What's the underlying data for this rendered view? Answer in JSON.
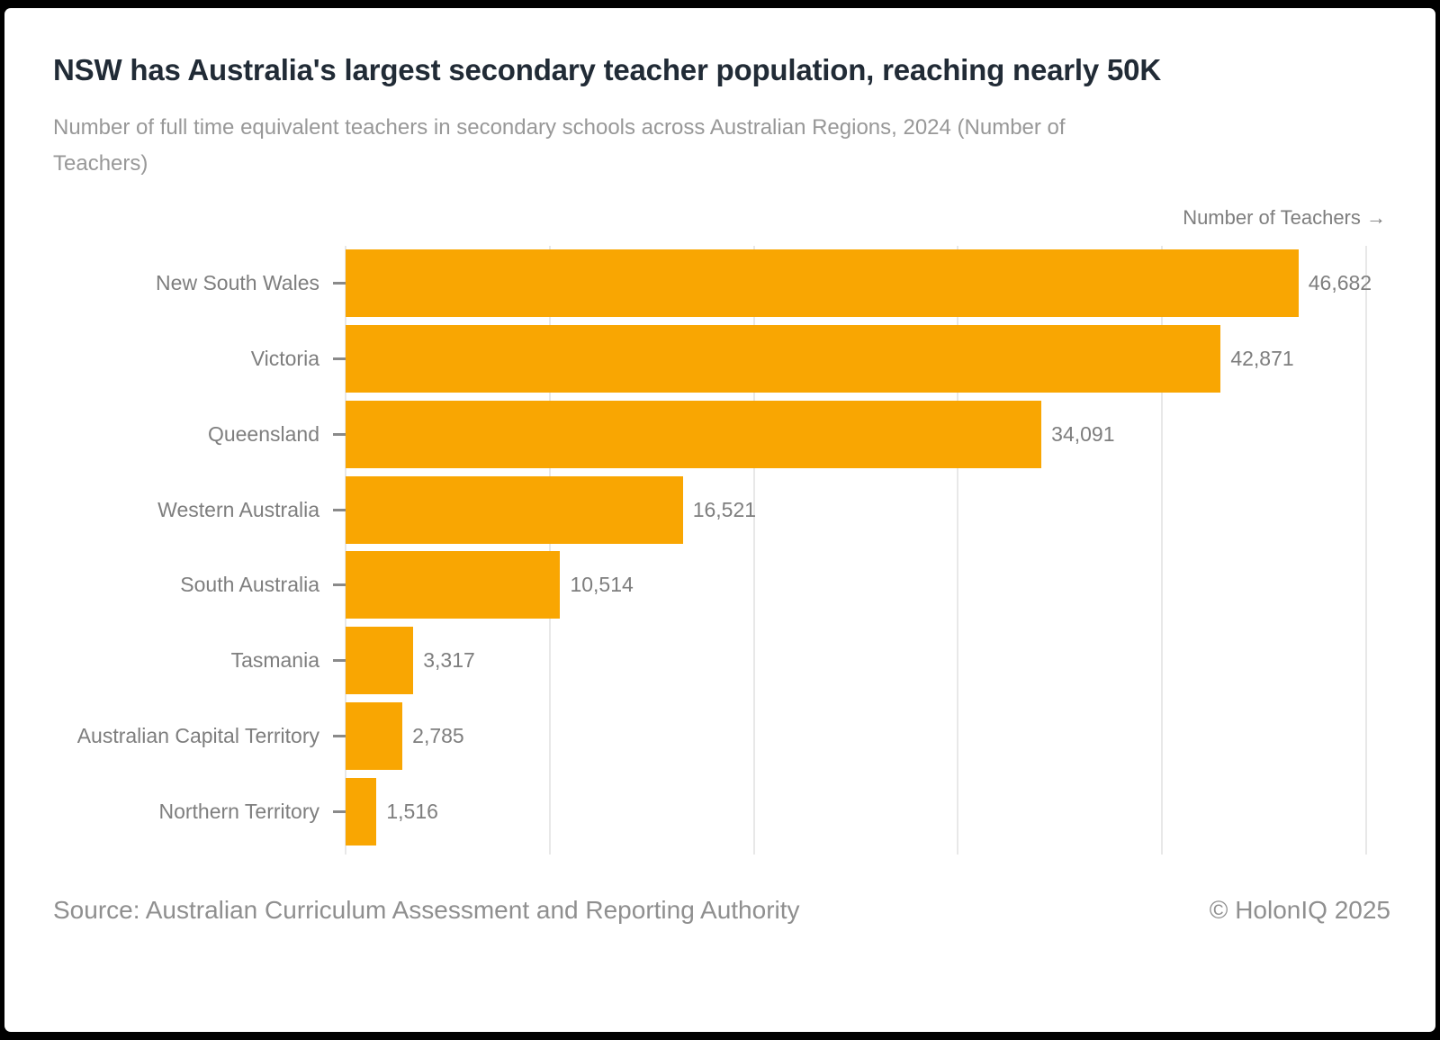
{
  "header": {
    "title": "NSW has Australia's largest secondary teacher population, reaching nearly 50K",
    "subtitle": "Number of full time equivalent teachers in secondary schools across Australian Regions, 2024 (Number of Teachers)",
    "subtitle_lines": [
      "Number of full time equivalent teachers in secondary schools across Australian Regions, 2024 (Number of",
      "Teachers)"
    ]
  },
  "axis": {
    "label": "Number of Teachers →"
  },
  "chart_data": {
    "type": "bar",
    "orientation": "horizontal",
    "title": "NSW has Australia's largest secondary teacher population, reaching nearly 50K",
    "subtitle": "Number of full time equivalent teachers in secondary schools across Australian Regions, 2024 (Number of Teachers)",
    "xlabel": "Number of Teachers",
    "ylabel": "",
    "categories": [
      "New South Wales",
      "Victoria",
      "Queensland",
      "Western Australia",
      "South Australia",
      "Tasmania",
      "Australian Capital Territory",
      "Northern Territory"
    ],
    "values": [
      46682,
      42871,
      34091,
      16521,
      10514,
      3317,
      2785,
      1516
    ],
    "value_labels": [
      "46,682",
      "42,871",
      "34,091",
      "16,521",
      "10,514",
      "3,317",
      "2,785",
      "1,516"
    ],
    "xlim": [
      0,
      50000
    ],
    "gridline_interval": 10000,
    "grid": true,
    "legend": false,
    "bar_color": "#F9A602"
  },
  "footer": {
    "source": "Source: Australian Curriculum Assessment and Reporting Authority",
    "copyright": "© HolonIQ 2025"
  },
  "colors": {
    "bar": "#F9A602",
    "title": "#212B36",
    "subtitle": "#989898",
    "axis_text": "#7E7E7E",
    "tick": "#8A8A8A",
    "gridline": "#E8E8E8",
    "footer": "#8F8F8F",
    "card_background": "#FFFFFF",
    "frame": "#000000"
  }
}
